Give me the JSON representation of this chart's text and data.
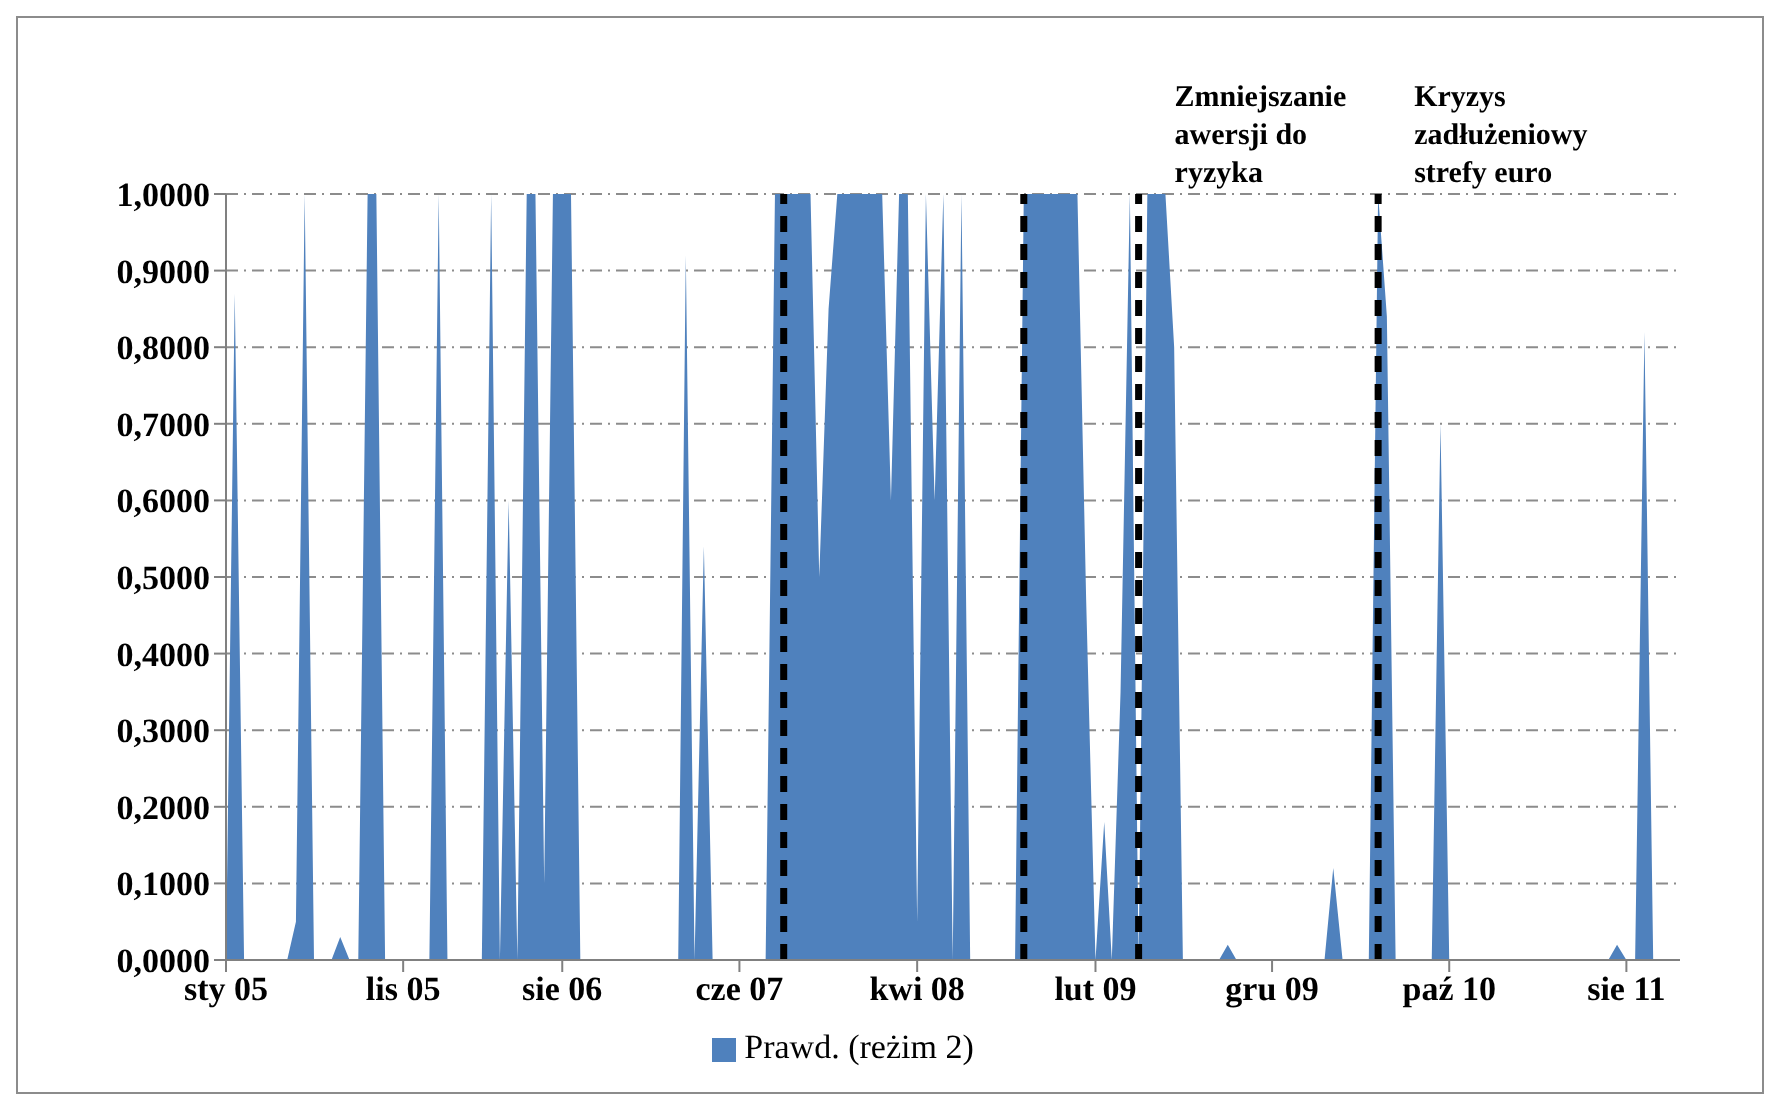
{
  "chart_data": {
    "type": "area",
    "x": [
      "2005-01-01",
      "2005-01-16",
      "2005-02-01",
      "2005-02-16",
      "2005-03-01",
      "2005-03-16",
      "2005-04-01",
      "2005-04-16",
      "2005-05-01",
      "2005-05-16",
      "2005-06-01",
      "2005-06-16",
      "2005-07-01",
      "2005-07-16",
      "2005-08-01",
      "2005-08-16",
      "2005-09-01",
      "2005-09-16",
      "2005-10-01",
      "2005-10-16",
      "2005-11-01",
      "2005-11-16",
      "2005-12-01",
      "2005-12-16",
      "2006-01-01",
      "2006-01-16",
      "2006-02-01",
      "2006-02-16",
      "2006-03-01",
      "2006-03-16",
      "2006-04-01",
      "2006-04-16",
      "2006-05-01",
      "2006-05-16",
      "2006-06-01",
      "2006-06-16",
      "2006-07-01",
      "2006-07-16",
      "2006-08-01",
      "2006-08-16",
      "2006-09-01",
      "2006-09-16",
      "2006-10-01",
      "2006-10-16",
      "2006-11-01",
      "2006-11-16",
      "2006-12-01",
      "2006-12-16",
      "2007-01-01",
      "2007-01-16",
      "2007-02-01",
      "2007-02-16",
      "2007-03-01",
      "2007-03-16",
      "2007-04-01",
      "2007-04-16",
      "2007-05-01",
      "2007-05-16",
      "2007-06-01",
      "2007-06-16",
      "2007-07-01",
      "2007-07-16",
      "2007-08-01",
      "2007-08-16",
      "2007-09-01",
      "2007-09-16",
      "2007-10-01",
      "2007-10-16",
      "2007-11-01",
      "2007-11-16",
      "2007-12-01",
      "2007-12-16",
      "2008-01-01",
      "2008-01-16",
      "2008-02-01",
      "2008-02-16",
      "2008-03-01",
      "2008-03-16",
      "2008-04-01",
      "2008-04-16",
      "2008-05-01",
      "2008-05-16",
      "2008-06-01",
      "2008-06-16",
      "2008-07-01",
      "2008-07-16",
      "2008-08-01",
      "2008-08-16",
      "2008-09-01",
      "2008-09-16",
      "2008-10-01",
      "2008-10-16",
      "2008-11-01",
      "2008-11-16",
      "2008-12-01",
      "2008-12-16",
      "2009-01-01",
      "2009-01-16",
      "2009-02-01",
      "2009-02-16",
      "2009-03-01",
      "2009-03-16",
      "2009-04-01",
      "2009-04-16",
      "2009-05-01",
      "2009-05-16",
      "2009-06-01",
      "2009-06-16",
      "2009-07-01",
      "2009-07-16",
      "2009-08-01",
      "2009-08-16",
      "2009-09-01",
      "2009-09-16",
      "2009-10-01",
      "2009-10-16",
      "2009-11-01",
      "2009-11-16",
      "2009-12-01",
      "2009-12-16",
      "2010-01-01",
      "2010-01-16",
      "2010-02-01",
      "2010-02-16",
      "2010-03-01",
      "2010-03-16",
      "2010-04-01",
      "2010-04-16",
      "2010-05-01",
      "2010-05-16",
      "2010-06-01",
      "2010-06-16",
      "2010-07-01",
      "2010-07-16",
      "2010-08-01",
      "2010-08-16",
      "2010-09-01",
      "2010-09-16",
      "2010-10-01",
      "2010-10-16",
      "2010-11-01",
      "2010-11-16",
      "2010-12-01",
      "2010-12-16",
      "2011-01-01",
      "2011-01-16",
      "2011-02-01",
      "2011-02-16",
      "2011-03-01",
      "2011-03-16",
      "2011-04-01",
      "2011-04-16",
      "2011-05-01",
      "2011-05-16",
      "2011-06-01",
      "2011-06-16",
      "2011-07-01",
      "2011-07-16",
      "2011-08-01",
      "2011-08-16",
      "2011-09-01",
      "2011-09-16",
      "2011-10-01",
      "2011-10-16",
      "2011-11-01"
    ],
    "series": [
      {
        "name": "Prawd. (reżim 2)",
        "color": "#4f81bd",
        "values": [
          0,
          0.87,
          0,
          0,
          0,
          0,
          0,
          0,
          0.05,
          1,
          0,
          0,
          0,
          0.03,
          0,
          0,
          1,
          1,
          0,
          0,
          0,
          0,
          0,
          0,
          1,
          0,
          0,
          0,
          0,
          0,
          1,
          0,
          0.6,
          0,
          1,
          1,
          0.1,
          1,
          1,
          1,
          0,
          0,
          0,
          0,
          0,
          0,
          0,
          0,
          0,
          0,
          0,
          0,
          0.92,
          0,
          0.54,
          0,
          0,
          0,
          0,
          0,
          0,
          0,
          1,
          1,
          1,
          1,
          1,
          0.5,
          0.85,
          1,
          1,
          1,
          1,
          1,
          1,
          0.6,
          1,
          1,
          0.05,
          1,
          0.6,
          1,
          0,
          1,
          0,
          0,
          0,
          0,
          0,
          0,
          1,
          1,
          1,
          1,
          1,
          1,
          1,
          0.47,
          0,
          0.18,
          0,
          0.35,
          1,
          0,
          1,
          1,
          1,
          0.8,
          0,
          0,
          0,
          0,
          0,
          0.02,
          0,
          0,
          0,
          0,
          0,
          0,
          0,
          0,
          0,
          0,
          0,
          0.12,
          0,
          0,
          0,
          0,
          1,
          0.84,
          0,
          0,
          0,
          0,
          0,
          0.7,
          0,
          0,
          0,
          0,
          0,
          0,
          0,
          0,
          0,
          0,
          0,
          0,
          0,
          0,
          0,
          0,
          0,
          0,
          0,
          0.02,
          0,
          0,
          0.82,
          0,
          0,
          0,
          0
        ]
      }
    ],
    "xlim": [
      "2005-01-01",
      "2011-11-01"
    ],
    "xticks": [
      {
        "value": "2005-01-01",
        "label": "sty 05"
      },
      {
        "value": "2005-11-01",
        "label": "lis 05"
      },
      {
        "value": "2006-08-01",
        "label": "sie 06"
      },
      {
        "value": "2007-06-01",
        "label": "cze 07"
      },
      {
        "value": "2008-04-01",
        "label": "kwi 08"
      },
      {
        "value": "2009-02-01",
        "label": "lut 09"
      },
      {
        "value": "2009-12-01",
        "label": "gru 09"
      },
      {
        "value": "2010-10-01",
        "label": "paź 10"
      },
      {
        "value": "2011-08-01",
        "label": "sie 11"
      }
    ],
    "ylim": [
      0,
      1
    ],
    "yticks": [
      {
        "value": 0,
        "label": "0,0000"
      },
      {
        "value": 0.1,
        "label": "0,1000"
      },
      {
        "value": 0.2,
        "label": "0,2000"
      },
      {
        "value": 0.3,
        "label": "0,3000"
      },
      {
        "value": 0.4,
        "label": "0,4000"
      },
      {
        "value": 0.5,
        "label": "0,5000"
      },
      {
        "value": 0.6,
        "label": "0,6000"
      },
      {
        "value": 0.7,
        "label": "0,7000"
      },
      {
        "value": 0.8,
        "label": "0,8000"
      },
      {
        "value": 0.9,
        "label": "0,9000"
      },
      {
        "value": 1,
        "label": "1,0000"
      }
    ],
    "grid": "y",
    "legend": "bottom",
    "ref_lines": [
      {
        "axis": "x",
        "value": "2007-08-16",
        "color": "#000000",
        "line_style": "dashed"
      },
      {
        "axis": "x",
        "value": "2008-10-01",
        "color": "#000000",
        "line_style": "dashed"
      },
      {
        "axis": "x",
        "value": "2009-04-16",
        "label": "Zmniejszanie awersji do ryzyka",
        "color": "#000000",
        "line_style": "dashed"
      },
      {
        "axis": "x",
        "value": "2010-06-01",
        "label": "Kryzys zadłużeniowy strefy euro",
        "color": "#000000",
        "line_style": "dashed"
      }
    ]
  }
}
